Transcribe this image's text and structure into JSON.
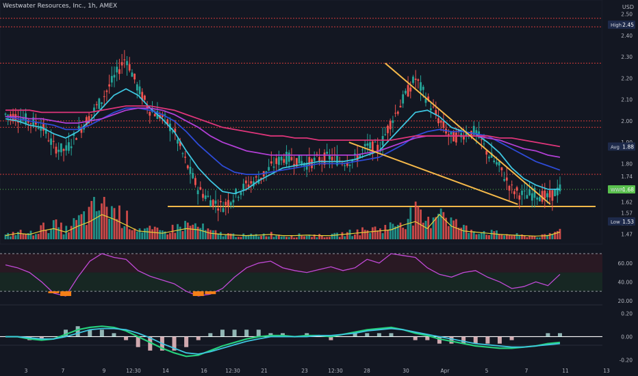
{
  "header": {
    "title": "Westwater Resources, Inc., 1h, AMEX",
    "currency": "USD"
  },
  "colors": {
    "background": "#131722",
    "up": "#26a69a",
    "down": "#ef5350",
    "ema_fast": "#3ec6e0",
    "ema_mid": "#2e4bd8",
    "ema_slow": "#b23fd6",
    "ema_long": "#e0357a",
    "trend": "#f6b94a",
    "rsi": "#c24ad8",
    "level": "#d43a3a",
    "current": "#59c04d"
  },
  "badges": {
    "high": {
      "label": "High",
      "value": "2.45"
    },
    "avg": {
      "label": "Avg",
      "value": "1.88"
    },
    "ticker": {
      "label": "WWR",
      "value": "1.68"
    },
    "low": {
      "label": "Low",
      "value": "1.53"
    }
  },
  "chart_data": [
    {
      "type": "candlestick",
      "title": "Westwater Resources, Inc., 1h, AMEX",
      "ylim": [
        1.44,
        2.54
      ],
      "y_ticks": [
        1.47,
        1.52,
        1.57,
        1.62,
        1.68,
        1.74,
        1.8,
        1.9,
        2.0,
        2.1,
        2.2,
        2.3,
        2.4,
        2.5
      ],
      "x_tick_labels": [
        "3",
        "7",
        "9",
        "12:30",
        "14",
        "16",
        "12:30",
        "21",
        "23",
        "12:30",
        "28",
        "30",
        "Apr",
        "5",
        "7",
        "11",
        "13"
      ],
      "close_path": [
        2.03,
        2.02,
        2.0,
        1.98,
        1.88,
        1.86,
        1.95,
        2.02,
        2.1,
        2.2,
        2.3,
        2.15,
        2.05,
        2.02,
        1.95,
        1.8,
        1.68,
        1.63,
        1.6,
        1.65,
        1.7,
        1.73,
        1.78,
        1.83,
        1.82,
        1.8,
        1.82,
        1.83,
        1.81,
        1.82,
        1.88,
        1.87,
        2.0,
        2.1,
        2.2,
        2.1,
        2.0,
        1.92,
        1.94,
        1.95,
        1.85,
        1.78,
        1.68,
        1.65,
        1.66,
        1.64,
        1.68
      ],
      "horizontal_levels": [
        2.48,
        2.44,
        2.27,
        2.0,
        1.97,
        1.75
      ],
      "current_price": 1.68,
      "support_line": 1.6,
      "series": [
        {
          "name": "EMA fast",
          "values": [
            2.01,
            2.0,
            1.98,
            1.97,
            1.94,
            1.92,
            1.95,
            2.0,
            2.06,
            2.12,
            2.15,
            2.12,
            2.06,
            2.01,
            1.95,
            1.86,
            1.78,
            1.72,
            1.67,
            1.66,
            1.68,
            1.72,
            1.75,
            1.78,
            1.79,
            1.8,
            1.81,
            1.81,
            1.81,
            1.82,
            1.84,
            1.86,
            1.92,
            1.98,
            2.04,
            2.05,
            2.02,
            1.97,
            1.95,
            1.94,
            1.9,
            1.85,
            1.78,
            1.73,
            1.7,
            1.68,
            1.68
          ]
        },
        {
          "name": "EMA mid",
          "values": [
            2.02,
            2.01,
            2.0,
            1.99,
            1.98,
            1.96,
            1.96,
            1.98,
            2.01,
            2.04,
            2.06,
            2.06,
            2.05,
            2.03,
            2.0,
            1.95,
            1.89,
            1.84,
            1.79,
            1.76,
            1.75,
            1.75,
            1.76,
            1.77,
            1.78,
            1.79,
            1.8,
            1.8,
            1.8,
            1.81,
            1.82,
            1.83,
            1.86,
            1.89,
            1.93,
            1.95,
            1.96,
            1.95,
            1.95,
            1.94,
            1.93,
            1.9,
            1.87,
            1.84,
            1.81,
            1.79,
            1.77
          ]
        },
        {
          "name": "EMA slow",
          "values": [
            2.02,
            2.02,
            2.01,
            2.01,
            2.0,
            1.99,
            1.99,
            2.0,
            2.01,
            2.03,
            2.05,
            2.06,
            2.06,
            2.05,
            2.03,
            2.0,
            1.97,
            1.93,
            1.9,
            1.88,
            1.86,
            1.85,
            1.84,
            1.84,
            1.84,
            1.84,
            1.84,
            1.84,
            1.84,
            1.84,
            1.85,
            1.86,
            1.88,
            1.9,
            1.92,
            1.93,
            1.93,
            1.93,
            1.93,
            1.93,
            1.92,
            1.91,
            1.89,
            1.87,
            1.86,
            1.84,
            1.83
          ]
        },
        {
          "name": "EMA long",
          "values": [
            2.05,
            2.05,
            2.05,
            2.04,
            2.04,
            2.04,
            2.04,
            2.04,
            2.05,
            2.06,
            2.07,
            2.07,
            2.07,
            2.06,
            2.05,
            2.03,
            2.01,
            1.99,
            1.97,
            1.96,
            1.95,
            1.94,
            1.93,
            1.93,
            1.92,
            1.92,
            1.91,
            1.91,
            1.91,
            1.91,
            1.91,
            1.91,
            1.91,
            1.92,
            1.93,
            1.93,
            1.93,
            1.93,
            1.93,
            1.93,
            1.93,
            1.92,
            1.92,
            1.91,
            1.9,
            1.89,
            1.88
          ]
        }
      ],
      "trend_lines": [
        {
          "from": [
            31.5,
            2.27
          ],
          "to": [
            45.2,
            1.61
          ]
        },
        {
          "from": [
            28.5,
            1.9
          ],
          "to": [
            42.5,
            1.61
          ]
        }
      ]
    },
    {
      "type": "bar",
      "name": "Volume",
      "relative_values": [
        0.1,
        0.2,
        0.15,
        0.3,
        0.4,
        0.25,
        0.5,
        0.7,
        1.0,
        0.8,
        0.55,
        0.3,
        0.25,
        0.2,
        0.3,
        0.4,
        0.35,
        0.2,
        0.15,
        0.12,
        0.1,
        0.12,
        0.15,
        0.1,
        0.1,
        0.12,
        0.1,
        0.1,
        0.15,
        0.2,
        0.25,
        0.3,
        0.35,
        0.55,
        0.7,
        0.4,
        1.0,
        0.5,
        0.3,
        0.25,
        0.2,
        0.15,
        0.12,
        0.1,
        0.08,
        0.1,
        0.25
      ]
    },
    {
      "type": "line",
      "name": "RSI",
      "ylim": [
        17,
        78
      ],
      "y_ticks": [
        20.0,
        40.0,
        60.0
      ],
      "bands": [
        70,
        30
      ],
      "values": [
        58,
        55,
        50,
        40,
        28,
        25,
        45,
        62,
        70,
        66,
        64,
        52,
        46,
        42,
        38,
        30,
        25,
        27,
        33,
        45,
        55,
        60,
        62,
        55,
        52,
        50,
        53,
        56,
        52,
        55,
        64,
        60,
        70,
        68,
        66,
        55,
        48,
        45,
        50,
        52,
        45,
        40,
        33,
        35,
        40,
        36,
        48
      ]
    },
    {
      "type": "line",
      "name": "MACD",
      "ylim": [
        -0.28,
        0.25
      ],
      "y_ticks": [
        -0.2,
        0.0,
        0.2
      ],
      "macd": [
        0.0,
        0.0,
        -0.02,
        -0.03,
        -0.02,
        0.02,
        0.06,
        0.08,
        0.09,
        0.08,
        0.05,
        0.0,
        -0.05,
        -0.1,
        -0.14,
        -0.17,
        -0.16,
        -0.12,
        -0.08,
        -0.05,
        -0.02,
        0.0,
        0.01,
        0.01,
        0.0,
        0.01,
        0.01,
        0.0,
        0.02,
        0.04,
        0.06,
        0.07,
        0.08,
        0.06,
        0.03,
        0.01,
        -0.02,
        -0.04,
        -0.06,
        -0.08,
        -0.09,
        -0.1,
        -0.1,
        -0.09,
        -0.08,
        -0.06,
        -0.05
      ],
      "signal": [
        0.0,
        0.0,
        -0.01,
        -0.02,
        -0.02,
        0.0,
        0.03,
        0.06,
        0.07,
        0.07,
        0.06,
        0.03,
        -0.01,
        -0.06,
        -0.1,
        -0.14,
        -0.15,
        -0.13,
        -0.1,
        -0.07,
        -0.04,
        -0.02,
        0.0,
        0.0,
        0.0,
        0.0,
        0.01,
        0.01,
        0.02,
        0.03,
        0.05,
        0.06,
        0.07,
        0.06,
        0.04,
        0.02,
        0.0,
        -0.02,
        -0.04,
        -0.06,
        -0.07,
        -0.08,
        -0.09,
        -0.09,
        -0.08,
        -0.07,
        -0.06
      ]
    }
  ]
}
